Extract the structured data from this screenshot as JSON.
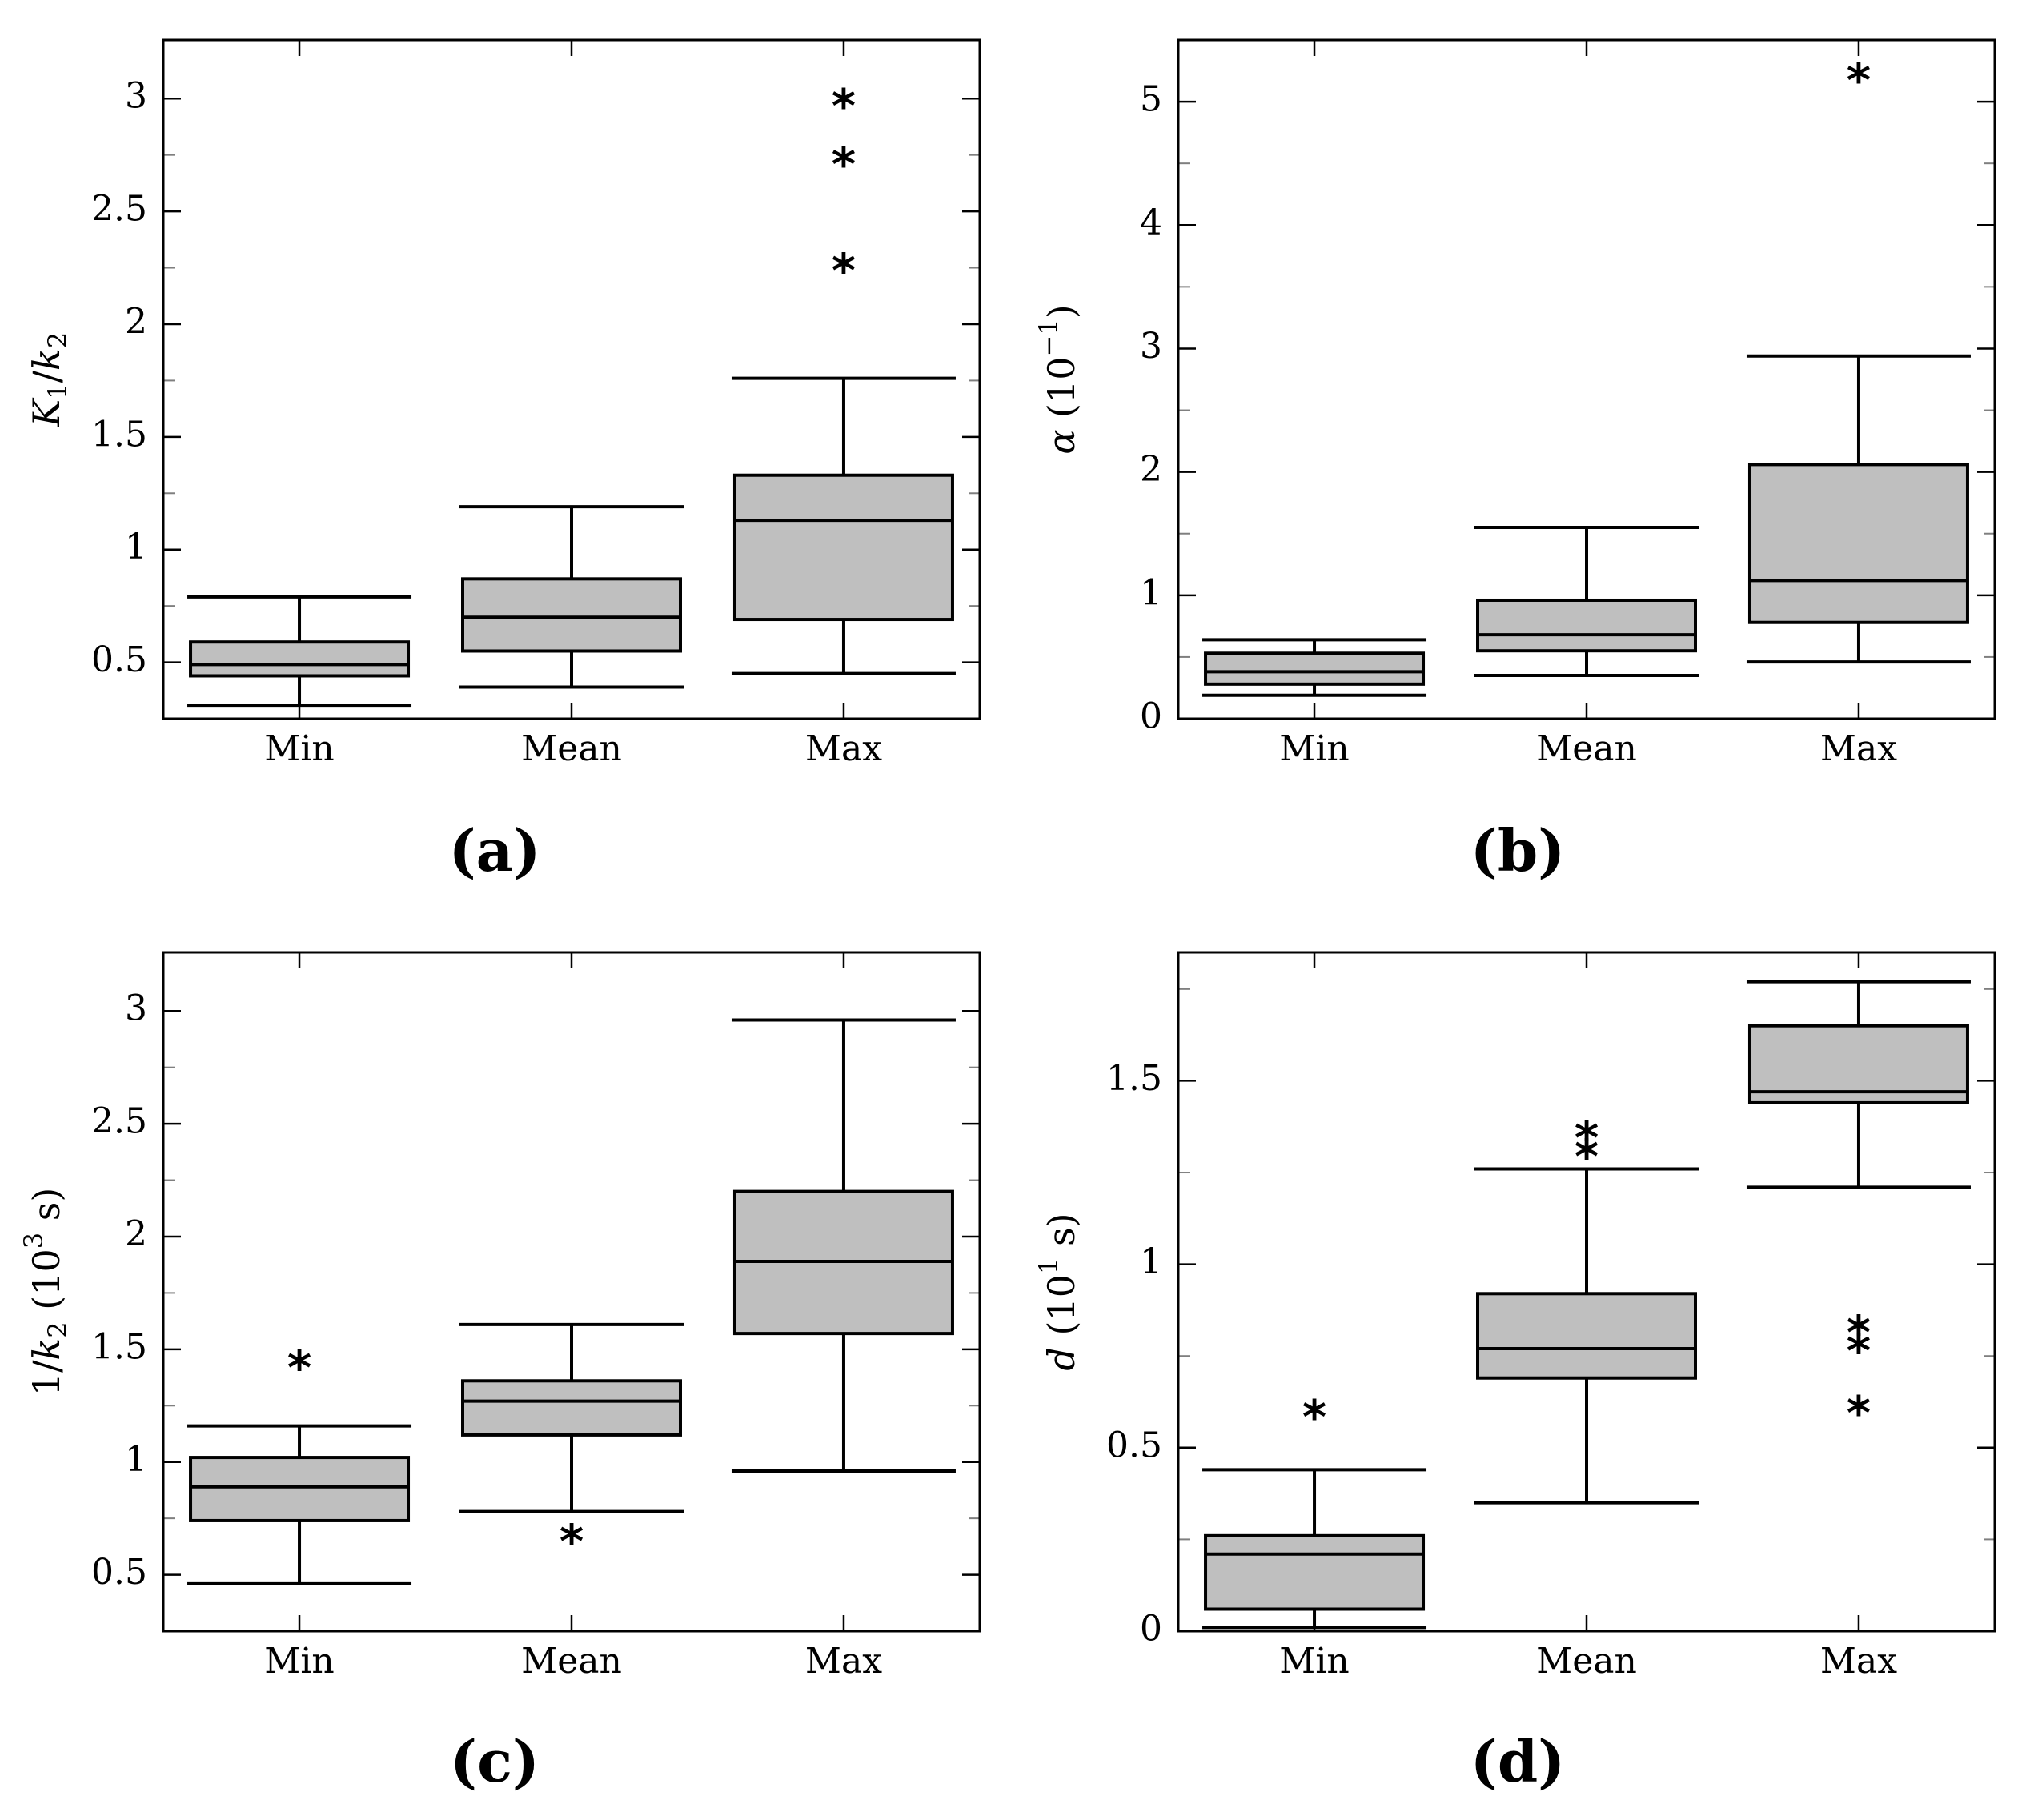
{
  "chart_data": [
    {
      "type": "box",
      "panel": "(a)",
      "ylabel": {
        "main": "K",
        "sub1": "1",
        "slash": "/",
        "k": "k",
        "sub2": "2",
        "unit": ""
      },
      "ylim": [
        0.25,
        3.26
      ],
      "yticks": [
        0.5,
        1,
        1.5,
        2,
        2.5,
        3
      ],
      "ytick_labels": [
        "0.5",
        "1",
        "1.5",
        "2",
        "2.5",
        "3"
      ],
      "minor_yticks": [
        0.75,
        1.25,
        1.75,
        2.25,
        2.75
      ],
      "categories": [
        "Min",
        "Mean",
        "Max"
      ],
      "boxes": [
        {
          "whisker_low": 0.31,
          "q1": 0.44,
          "median": 0.49,
          "q3": 0.59,
          "whisker_high": 0.79,
          "outliers": []
        },
        {
          "whisker_low": 0.39,
          "q1": 0.55,
          "median": 0.7,
          "q3": 0.87,
          "whisker_high": 1.19,
          "outliers": []
        },
        {
          "whisker_low": 0.45,
          "q1": 0.69,
          "median": 1.13,
          "q3": 1.33,
          "whisker_high": 1.76,
          "outliers": [
            2.28,
            2.75,
            3.01
          ]
        }
      ]
    },
    {
      "type": "box",
      "panel": "(b)",
      "ylabel": {
        "main": "α",
        "base": "10",
        "exp": "−1"
      },
      "ylim": [
        0,
        5.5
      ],
      "yticks": [
        0,
        1,
        2,
        3,
        4,
        5
      ],
      "ytick_labels": [
        "0",
        "1",
        "2",
        "3",
        "4",
        "5"
      ],
      "minor_yticks": [
        0.5,
        1.5,
        2.5,
        3.5,
        4.5
      ],
      "categories": [
        "Min",
        "Mean",
        "Max"
      ],
      "boxes": [
        {
          "whisker_low": 0.19,
          "q1": 0.28,
          "median": 0.38,
          "q3": 0.53,
          "whisker_high": 0.64,
          "outliers": []
        },
        {
          "whisker_low": 0.35,
          "q1": 0.55,
          "median": 0.68,
          "q3": 0.96,
          "whisker_high": 1.55,
          "outliers": []
        },
        {
          "whisker_low": 0.46,
          "q1": 0.78,
          "median": 1.12,
          "q3": 2.06,
          "whisker_high": 2.94,
          "outliers": [
            5.25
          ]
        }
      ]
    },
    {
      "type": "box",
      "panel": "(c)",
      "ylabel": {
        "pre": "1/",
        "k": "k",
        "sub2": "2",
        "base": "10",
        "exp": "3",
        "unit": "s"
      },
      "ylim": [
        0.25,
        3.26
      ],
      "yticks": [
        0.5,
        1,
        1.5,
        2,
        2.5,
        3
      ],
      "ytick_labels": [
        "0.5",
        "1",
        "1.5",
        "2",
        "2.5",
        "3"
      ],
      "minor_yticks": [
        0.75,
        1.25,
        1.75,
        2.25,
        2.75
      ],
      "categories": [
        "Min",
        "Mean",
        "Max"
      ],
      "boxes": [
        {
          "whisker_low": 0.46,
          "q1": 0.74,
          "median": 0.89,
          "q3": 1.02,
          "whisker_high": 1.16,
          "outliers": [
            1.46
          ]
        },
        {
          "whisker_low": 0.78,
          "q1": 1.12,
          "median": 1.27,
          "q3": 1.36,
          "whisker_high": 1.61,
          "outliers": [
            0.69
          ]
        },
        {
          "whisker_low": 0.96,
          "q1": 1.57,
          "median": 1.89,
          "q3": 2.2,
          "whisker_high": 2.96,
          "outliers": []
        }
      ]
    },
    {
      "type": "box",
      "panel": "(d)",
      "ylabel": {
        "main": "d",
        "base": "10",
        "exp": "1",
        "unit": "s"
      },
      "ylim": [
        0,
        1.85
      ],
      "yticks": [
        0,
        0.5,
        1,
        1.5
      ],
      "ytick_labels": [
        "0",
        "0.5",
        "1",
        "1.5"
      ],
      "minor_yticks": [
        0.25,
        0.75,
        1.25,
        1.75
      ],
      "categories": [
        "Min",
        "Mean",
        "Max"
      ],
      "boxes": [
        {
          "whisker_low": 0.01,
          "q1": 0.06,
          "median": 0.21,
          "q3": 0.26,
          "whisker_high": 0.44,
          "outliers": [
            0.61
          ]
        },
        {
          "whisker_low": 0.35,
          "q1": 0.69,
          "median": 0.77,
          "q3": 0.92,
          "whisker_high": 1.26,
          "outliers": [
            1.32,
            1.37
          ]
        },
        {
          "whisker_low": 1.21,
          "q1": 1.44,
          "median": 1.47,
          "q3": 1.65,
          "whisker_high": 1.77,
          "outliers": [
            0.62,
            0.79,
            0.84
          ]
        }
      ]
    }
  ],
  "captions": [
    "(a)",
    "(b)",
    "(c)",
    "(d)"
  ],
  "colors": {
    "box_fill": "#bfbfbf",
    "stroke": "#000000",
    "minor_tick": "#7f7f7f"
  }
}
